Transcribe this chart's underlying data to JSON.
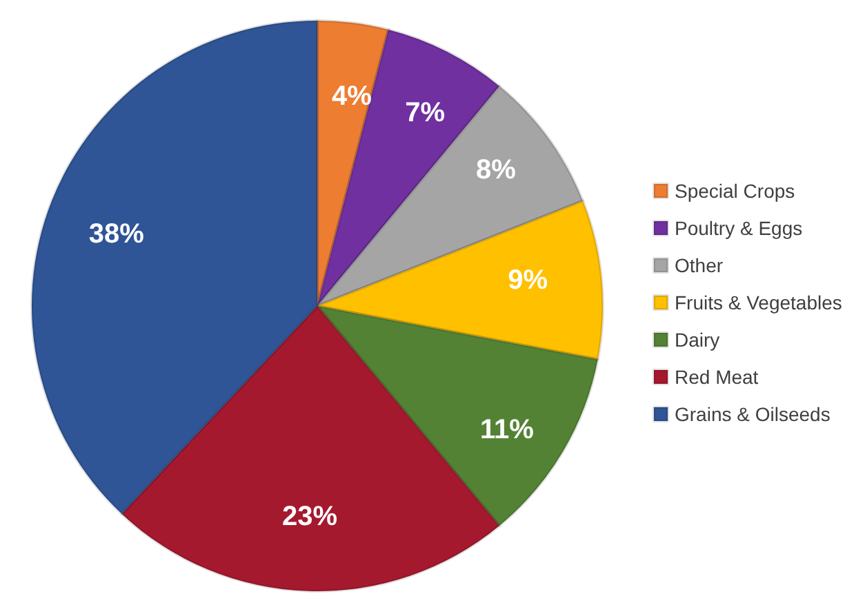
{
  "chart_data": {
    "type": "pie",
    "categories": [
      "Special Crops",
      "Poultry & Eggs",
      "Other",
      "Fruits & Vegetables",
      "Dairy",
      "Red Meat",
      "Grains & Oilseeds"
    ],
    "values": [
      4,
      7,
      8,
      9,
      11,
      23,
      38
    ],
    "value_labels": [
      "4%",
      "7%",
      "8%",
      "9%",
      "11%",
      "23%",
      "38%"
    ],
    "colors": [
      "#ed7d31",
      "#7030a0",
      "#a5a5a5",
      "#ffc000",
      "#548235",
      "#a5192e",
      "#2f5597"
    ],
    "legend": "right"
  }
}
